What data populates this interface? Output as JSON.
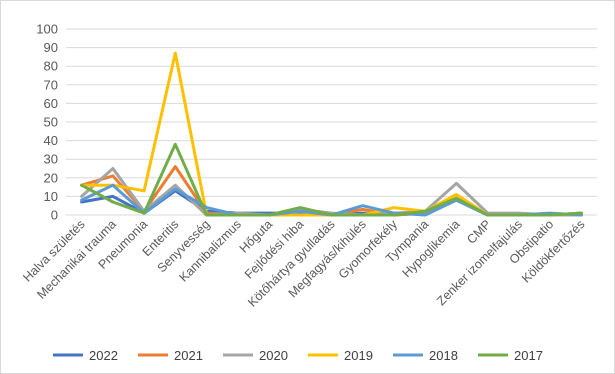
{
  "chart_data": {
    "type": "line",
    "title": "",
    "xlabel": "",
    "ylabel": "",
    "ylim": [
      0,
      100
    ],
    "ytick_step": 10,
    "grid": true,
    "legend_position": "bottom",
    "categories": [
      "Halva születés",
      "Mechanikai trauma",
      "Pneumonia",
      "Enteritis",
      "Senyvesség",
      "Kannibalizmus",
      "Hőguta",
      "Fejlődési hiba",
      "Kötőhártya gyulladás",
      "Megfagyás/kihülés",
      "Gyomorfekély",
      "Tympania",
      "Hypoglikemia",
      "CMP",
      "Zenker izomelfajulás",
      "Obstipatio",
      "Köldökfertőzés"
    ],
    "series": [
      {
        "name": "2022",
        "color": "#4472c4",
        "values": [
          7,
          10,
          1,
          13,
          2,
          1,
          1,
          1,
          0,
          1,
          0,
          1,
          8,
          0,
          0,
          0,
          1
        ]
      },
      {
        "name": "2021",
        "color": "#ed7d31",
        "values": [
          16,
          21,
          2,
          26,
          1,
          0,
          0,
          2,
          0,
          3,
          0,
          1,
          9,
          0,
          0,
          0,
          0
        ]
      },
      {
        "name": "2020",
        "color": "#a5a5a5",
        "values": [
          10,
          25,
          2,
          16,
          0,
          1,
          0,
          3,
          1,
          0,
          1,
          2,
          17,
          1,
          1,
          0,
          0
        ]
      },
      {
        "name": "2019",
        "color": "#ffc000",
        "values": [
          16,
          16,
          13,
          87,
          0,
          0,
          0,
          0,
          0,
          0,
          4,
          2,
          11,
          0,
          0,
          0,
          1
        ]
      },
      {
        "name": "2018",
        "color": "#5b9bd5",
        "values": [
          8,
          16,
          1,
          14,
          4,
          0,
          0,
          2,
          0,
          5,
          1,
          0,
          8,
          0,
          0,
          1,
          0
        ]
      },
      {
        "name": "2017",
        "color": "#70ad47",
        "values": [
          16,
          7,
          1,
          38,
          0,
          0,
          0,
          4,
          0,
          0,
          0,
          2,
          9,
          0,
          0,
          0,
          1
        ]
      }
    ]
  }
}
